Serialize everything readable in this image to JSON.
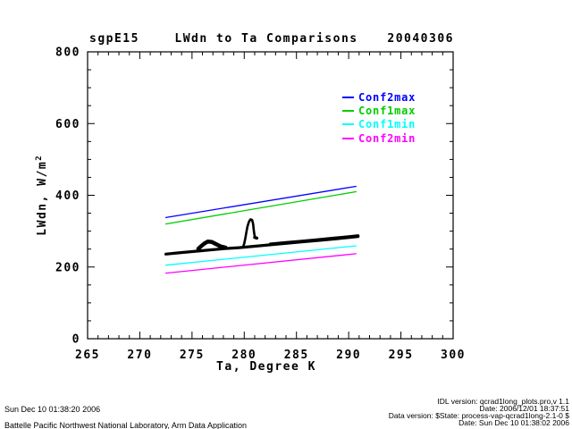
{
  "chart_data": {
    "type": "scatter",
    "site": "sgpE15",
    "title": "LWdn to Ta Comparisons",
    "date_label": "20040306",
    "xlabel": "Ta, Degree K",
    "ylabel": "LWdn, W/m2",
    "ylabel_base": "LWdn, W/m",
    "ylabel_sup": "2",
    "xlim": [
      265,
      300
    ],
    "ylim": [
      0,
      800
    ],
    "x_major_ticks": [
      265,
      270,
      275,
      280,
      285,
      290,
      295,
      300
    ],
    "y_major_ticks": [
      0,
      200,
      400,
      600,
      800
    ],
    "x_minor_step": 1,
    "y_minor_step": 50,
    "grid": false,
    "legend_position": "inside-upper-right",
    "legend": [
      {
        "label": "Conf2max",
        "color": "#0000ff"
      },
      {
        "label": "Conf1max",
        "color": "#00cc00"
      },
      {
        "label": "Conf1min",
        "color": "#00ffff"
      },
      {
        "label": "Conf2min",
        "color": "#ff00ff"
      }
    ],
    "series": [
      {
        "name": "Conf2max",
        "color": "#0000ff",
        "width": 1.3,
        "points": [
          [
            272.5,
            338
          ],
          [
            290.7,
            425
          ]
        ]
      },
      {
        "name": "Conf1max",
        "color": "#00cc00",
        "width": 1.3,
        "points": [
          [
            272.5,
            320
          ],
          [
            290.7,
            410
          ]
        ]
      },
      {
        "name": "Conf1min",
        "color": "#00ffff",
        "width": 1.3,
        "points": [
          [
            272.5,
            205
          ],
          [
            290.7,
            259
          ]
        ]
      },
      {
        "name": "Conf2min",
        "color": "#ff00ff",
        "width": 1.3,
        "points": [
          [
            272.5,
            183
          ],
          [
            290.7,
            237
          ]
        ]
      },
      {
        "name": "lwdn-data-band",
        "color": "#000000",
        "width": 3.2,
        "points": [
          [
            272.5,
            236
          ],
          [
            273.5,
            239
          ],
          [
            275,
            243
          ],
          [
            276.5,
            247
          ],
          [
            278,
            251
          ],
          [
            279.5,
            254
          ],
          [
            281,
            258
          ],
          [
            282.5,
            262
          ],
          [
            284,
            266
          ],
          [
            285.5,
            270
          ],
          [
            287,
            274
          ],
          [
            288.5,
            278
          ],
          [
            290,
            282
          ],
          [
            290.9,
            285
          ]
        ]
      },
      {
        "name": "lwdn-data-band-thick",
        "color": "#000000",
        "width": 3,
        "points": [
          [
            282.5,
            264.5
          ],
          [
            284,
            268.5
          ],
          [
            285.5,
            272.5
          ],
          [
            287,
            276.5
          ],
          [
            288.5,
            280.5
          ],
          [
            290,
            284.5
          ],
          [
            290.9,
            287.5
          ]
        ]
      },
      {
        "name": "lwdn-data-bump",
        "color": "#000000",
        "width": 4.5,
        "points": [
          [
            275.6,
            251
          ],
          [
            275.9,
            259
          ],
          [
            276.2,
            266
          ],
          [
            276.5,
            271
          ],
          [
            276.9,
            270
          ],
          [
            277.3,
            264
          ],
          [
            277.7,
            258
          ],
          [
            278.2,
            254
          ]
        ]
      },
      {
        "name": "lwdn-data-spike",
        "color": "#000000",
        "width": 2.6,
        "points": [
          [
            279.9,
            256
          ],
          [
            280.0,
            266
          ],
          [
            280.1,
            280
          ],
          [
            280.2,
            296
          ],
          [
            280.3,
            312
          ],
          [
            280.45,
            326
          ],
          [
            280.6,
            333
          ],
          [
            280.75,
            331
          ],
          [
            280.85,
            320
          ],
          [
            280.9,
            306
          ],
          [
            280.95,
            294
          ],
          [
            281.0,
            286
          ]
        ]
      },
      {
        "name": "lwdn-data-spike-dot",
        "color": "#000000",
        "width": 3.5,
        "points": [
          [
            281.0,
            282.5
          ],
          [
            281.2,
            280.5
          ]
        ]
      }
    ]
  },
  "footer": {
    "left_line1": "Sun Dec 10 01:38:20 2006",
    "left_line2": "Battelle Pacific Northwest National Laboratory, Arm Data Application",
    "right_line1": "IDL version: qcrad1long_plots.pro,v 1.1",
    "right_line2": "Date: 2006/12/01 18:37:51",
    "right_line3": "Data version: $State: process-vap-qcrad1long-2.1-0 $",
    "right_line4": "Date: Sun Dec 10 01:38:02 2006"
  }
}
